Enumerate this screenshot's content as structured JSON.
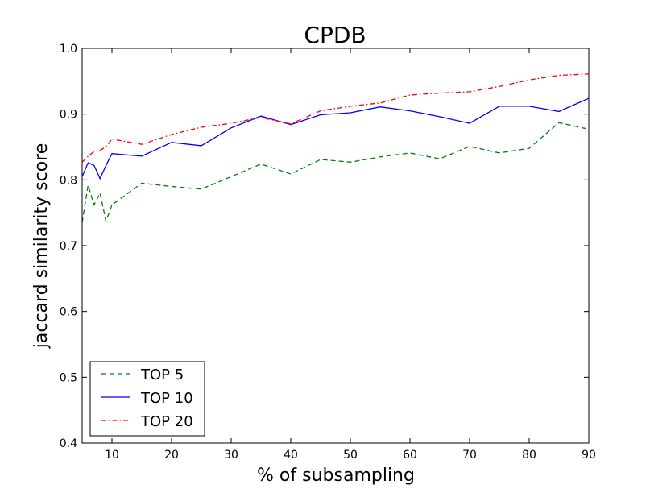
{
  "chart_data": {
    "type": "line",
    "title": "CPDB",
    "xlabel": "% of subsampling",
    "ylabel": "jaccard similarity score",
    "xlim": [
      5,
      90
    ],
    "ylim": [
      0.4,
      1.0
    ],
    "xticks": [
      10,
      20,
      30,
      40,
      50,
      60,
      70,
      80,
      90
    ],
    "yticks": [
      0.4,
      0.5,
      0.6,
      0.7,
      0.8,
      0.9,
      1.0
    ],
    "xtick_labels": [
      "10",
      "20",
      "30",
      "40",
      "50",
      "60",
      "70",
      "80",
      "90"
    ],
    "ytick_labels": [
      "0.4",
      "0.5",
      "0.6",
      "0.7",
      "0.8",
      "0.9",
      "1.0"
    ],
    "grid": false,
    "legend_position": "lower-left",
    "series": [
      {
        "name": "TOP 5",
        "color": "#008000",
        "style": "dashed",
        "x": [
          5,
          6,
          7,
          8,
          9,
          10,
          15,
          20,
          25,
          30,
          35,
          40,
          45,
          50,
          55,
          60,
          65,
          70,
          75,
          80,
          85,
          90
        ],
        "y": [
          0.735,
          0.792,
          0.762,
          0.78,
          0.737,
          0.762,
          0.795,
          0.79,
          0.786,
          0.805,
          0.824,
          0.809,
          0.831,
          0.827,
          0.835,
          0.841,
          0.832,
          0.851,
          0.841,
          0.848,
          0.887,
          0.877
        ]
      },
      {
        "name": "TOP 10",
        "color": "#0000ff",
        "style": "solid",
        "x": [
          5,
          6,
          7,
          8,
          9,
          10,
          15,
          20,
          25,
          30,
          35,
          40,
          45,
          50,
          55,
          60,
          65,
          70,
          75,
          80,
          85,
          90
        ],
        "y": [
          0.805,
          0.826,
          0.822,
          0.802,
          0.822,
          0.84,
          0.836,
          0.857,
          0.852,
          0.879,
          0.897,
          0.884,
          0.899,
          0.902,
          0.911,
          0.905,
          0.896,
          0.886,
          0.912,
          0.912,
          0.904,
          0.924
        ]
      },
      {
        "name": "TOP 20",
        "color": "#ff0000",
        "style": "dashdot",
        "x": [
          5,
          6,
          7,
          8,
          9,
          10,
          15,
          20,
          25,
          30,
          35,
          40,
          45,
          50,
          55,
          60,
          65,
          70,
          75,
          80,
          85,
          90
        ],
        "y": [
          0.827,
          0.836,
          0.843,
          0.845,
          0.85,
          0.862,
          0.854,
          0.869,
          0.88,
          0.886,
          0.895,
          0.885,
          0.905,
          0.912,
          0.917,
          0.929,
          0.932,
          0.934,
          0.942,
          0.952,
          0.959,
          0.961
        ]
      }
    ]
  }
}
